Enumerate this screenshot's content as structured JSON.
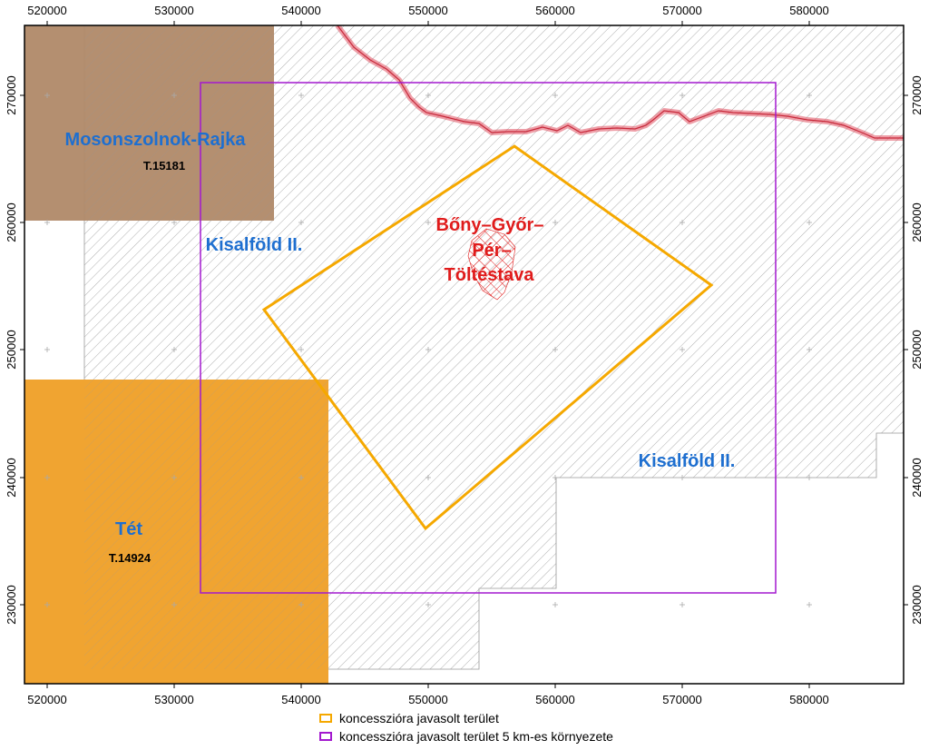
{
  "map": {
    "x_ticks": [
      "520000",
      "530000",
      "540000",
      "550000",
      "560000",
      "570000",
      "580000"
    ],
    "y_ticks": [
      "270000",
      "260000",
      "250000",
      "240000",
      "230000"
    ],
    "areas": [
      {
        "name": "Mosonszolnok-Rajka",
        "code": "T.15181",
        "color": "#b08968"
      },
      {
        "name": "Tét",
        "code": "T.14924",
        "color": "#f0a431"
      },
      {
        "name": "Kisalföld II.",
        "color": "#1e6fd0"
      },
      {
        "name": "Kisalföld II.",
        "color": "#1e6fd0"
      },
      {
        "name_lines": [
          "Bőny–Győr–",
          "Pér–",
          "Töltéstava"
        ],
        "color": "#e01b1b"
      }
    ],
    "colors": {
      "concession": "#f5a800",
      "buffer": "#a319cf",
      "border": "#e05060",
      "hatch": "#9a9a9a"
    }
  },
  "legend": [
    {
      "label": "koncesszióra javasolt terület",
      "color": "#f5a800"
    },
    {
      "label": "koncesszióra javasolt terület 5 km-es környezete",
      "color": "#a319cf"
    }
  ]
}
